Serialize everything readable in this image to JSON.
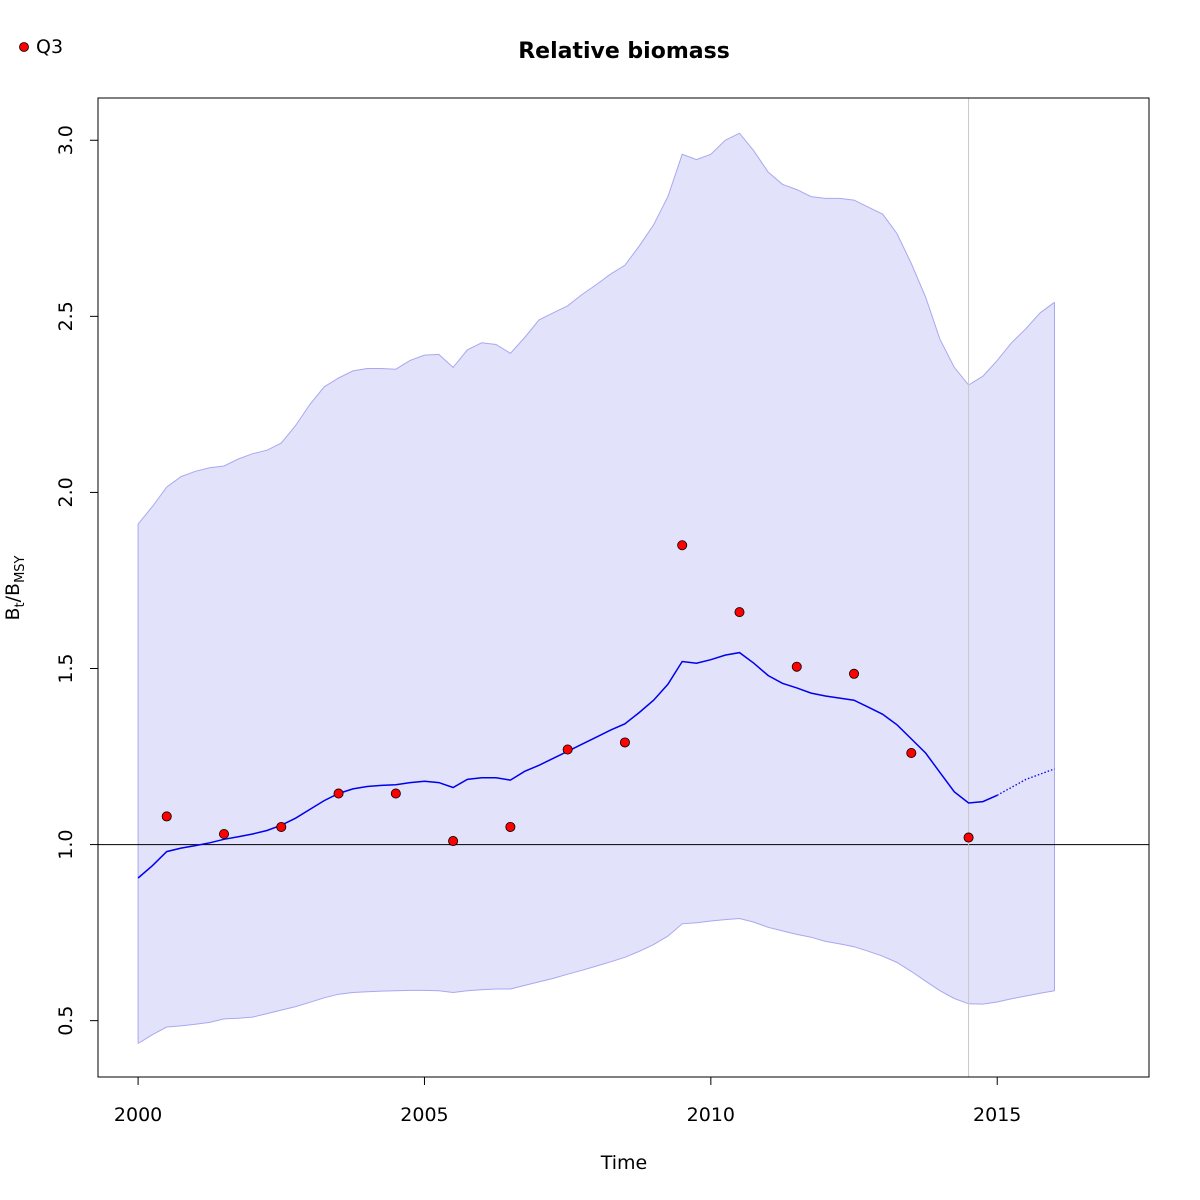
{
  "chart_data": {
    "type": "line",
    "title": "Relative biomass",
    "xlabel": "Time",
    "ylabel": {
      "main": "B",
      "sub1": "t",
      "sep": "/B",
      "sub2": "MSY"
    },
    "xlim": [
      1999.3,
      2017.65
    ],
    "ylim": [
      0.34,
      3.12
    ],
    "x_ticks": [
      2000,
      2005,
      2010,
      2015
    ],
    "y_ticks": [
      0.5,
      1.0,
      1.5,
      2.0,
      2.5,
      3.0
    ],
    "y_tick_labels": [
      "0.5",
      "1.0",
      "1.5",
      "2.0",
      "2.5",
      "3.0"
    ],
    "reference_line_y": 1.0,
    "vertical_line_x": 2014.5,
    "legend": {
      "position": "top-left",
      "entries": [
        {
          "label": "Q3",
          "color": "#ff0000"
        }
      ]
    },
    "colors": {
      "band_fill": "#e2e2fb",
      "band_edge": "#a8a8f0",
      "line": "#0000ee",
      "points": "#ff0000",
      "vline": "#c8c8c8"
    },
    "series": [
      {
        "name": "Q3",
        "kind": "points",
        "x": [
          2000.5,
          2001.5,
          2002.5,
          2003.5,
          2004.5,
          2005.5,
          2006.5,
          2007.5,
          2008.5,
          2009.5,
          2010.5,
          2011.5,
          2012.5,
          2013.5,
          2014.5
        ],
        "values": [
          1.08,
          1.03,
          1.05,
          1.145,
          1.145,
          1.01,
          1.05,
          1.27,
          1.29,
          1.85,
          1.66,
          1.505,
          1.485,
          1.26,
          1.02
        ]
      },
      {
        "kind": "estimate",
        "x": [
          2000,
          2000.25,
          2000.5,
          2000.75,
          2001,
          2001.25,
          2001.5,
          2001.75,
          2002,
          2002.25,
          2002.5,
          2002.75,
          2003,
          2003.25,
          2003.5,
          2003.75,
          2004,
          2004.25,
          2004.5,
          2004.75,
          2005,
          2005.25,
          2005.5,
          2005.75,
          2006,
          2006.25,
          2006.5,
          2006.75,
          2007,
          2007.25,
          2007.5,
          2007.75,
          2008,
          2008.25,
          2008.5,
          2008.75,
          2009,
          2009.25,
          2009.5,
          2009.75,
          2010,
          2010.25,
          2010.5,
          2010.75,
          2011,
          2011.25,
          2011.5,
          2011.75,
          2012,
          2012.25,
          2012.5,
          2012.75,
          2013,
          2013.25,
          2013.5,
          2013.75,
          2014,
          2014.25,
          2014.5,
          2014.75,
          2015
        ],
        "values": [
          0.905,
          0.94,
          0.98,
          0.99,
          0.997,
          1.005,
          1.015,
          1.022,
          1.03,
          1.04,
          1.055,
          1.075,
          1.1,
          1.125,
          1.145,
          1.158,
          1.165,
          1.168,
          1.17,
          1.176,
          1.18,
          1.176,
          1.162,
          1.185,
          1.19,
          1.19,
          1.183,
          1.208,
          1.225,
          1.245,
          1.265,
          1.285,
          1.305,
          1.325,
          1.343,
          1.375,
          1.41,
          1.455,
          1.52,
          1.515,
          1.525,
          1.538,
          1.545,
          1.515,
          1.48,
          1.458,
          1.445,
          1.43,
          1.422,
          1.416,
          1.41,
          1.39,
          1.37,
          1.34,
          1.3,
          1.26,
          1.205,
          1.15,
          1.118,
          1.122,
          1.14
        ]
      },
      {
        "kind": "projection",
        "x": [
          2015,
          2015.5,
          2016
        ],
        "values": [
          1.14,
          1.185,
          1.215
        ]
      },
      {
        "kind": "upper-bound",
        "x": [
          2000,
          2000.25,
          2000.5,
          2000.75,
          2001,
          2001.25,
          2001.5,
          2001.75,
          2002,
          2002.25,
          2002.5,
          2002.75,
          2003,
          2003.25,
          2003.5,
          2003.75,
          2004,
          2004.25,
          2004.5,
          2004.75,
          2005,
          2005.25,
          2005.5,
          2005.75,
          2006,
          2006.25,
          2006.5,
          2006.75,
          2007,
          2007.25,
          2007.5,
          2007.75,
          2008,
          2008.25,
          2008.5,
          2008.75,
          2009,
          2009.25,
          2009.5,
          2009.75,
          2010,
          2010.25,
          2010.5,
          2010.75,
          2011,
          2011.25,
          2011.5,
          2011.75,
          2012,
          2012.25,
          2012.5,
          2012.75,
          2013,
          2013.25,
          2013.5,
          2013.75,
          2014,
          2014.25,
          2014.5,
          2014.75,
          2015,
          2015.25,
          2015.5,
          2015.75,
          2016
        ],
        "values": [
          1.91,
          1.96,
          2.015,
          2.045,
          2.06,
          2.07,
          2.075,
          2.095,
          2.11,
          2.12,
          2.14,
          2.19,
          2.25,
          2.3,
          2.325,
          2.345,
          2.352,
          2.352,
          2.35,
          2.375,
          2.39,
          2.392,
          2.355,
          2.405,
          2.425,
          2.42,
          2.395,
          2.44,
          2.49,
          2.51,
          2.53,
          2.562,
          2.59,
          2.62,
          2.645,
          2.7,
          2.76,
          2.84,
          2.96,
          2.945,
          2.96,
          3.0,
          3.02,
          2.97,
          2.91,
          2.875,
          2.86,
          2.84,
          2.835,
          2.835,
          2.83,
          2.81,
          2.79,
          2.735,
          2.65,
          2.555,
          2.435,
          2.355,
          2.305,
          2.33,
          2.375,
          2.425,
          2.465,
          2.51,
          2.54
        ]
      },
      {
        "kind": "lower-bound",
        "x": [
          2000,
          2000.25,
          2000.5,
          2000.75,
          2001,
          2001.25,
          2001.5,
          2001.75,
          2002,
          2002.25,
          2002.5,
          2002.75,
          2003,
          2003.25,
          2003.5,
          2003.75,
          2004,
          2004.25,
          2004.5,
          2004.75,
          2005,
          2005.25,
          2005.5,
          2005.75,
          2006,
          2006.25,
          2006.5,
          2006.75,
          2007,
          2007.25,
          2007.5,
          2007.75,
          2008,
          2008.25,
          2008.5,
          2008.75,
          2009,
          2009.25,
          2009.5,
          2009.75,
          2010,
          2010.25,
          2010.5,
          2010.75,
          2011,
          2011.25,
          2011.5,
          2011.75,
          2012,
          2012.25,
          2012.5,
          2012.75,
          2013,
          2013.25,
          2013.5,
          2013.75,
          2014,
          2014.25,
          2014.5,
          2014.75,
          2015,
          2015.25,
          2015.5,
          2015.75,
          2016
        ],
        "values": [
          0.435,
          0.46,
          0.482,
          0.485,
          0.49,
          0.495,
          0.505,
          0.507,
          0.51,
          0.52,
          0.53,
          0.54,
          0.552,
          0.565,
          0.575,
          0.58,
          0.582,
          0.584,
          0.585,
          0.586,
          0.586,
          0.585,
          0.58,
          0.585,
          0.588,
          0.59,
          0.59,
          0.6,
          0.61,
          0.62,
          0.632,
          0.643,
          0.655,
          0.667,
          0.68,
          0.697,
          0.716,
          0.74,
          0.775,
          0.778,
          0.783,
          0.787,
          0.79,
          0.78,
          0.765,
          0.755,
          0.745,
          0.737,
          0.725,
          0.718,
          0.71,
          0.697,
          0.683,
          0.665,
          0.64,
          0.612,
          0.585,
          0.563,
          0.548,
          0.547,
          0.553,
          0.562,
          0.57,
          0.578,
          0.585
        ]
      }
    ]
  }
}
